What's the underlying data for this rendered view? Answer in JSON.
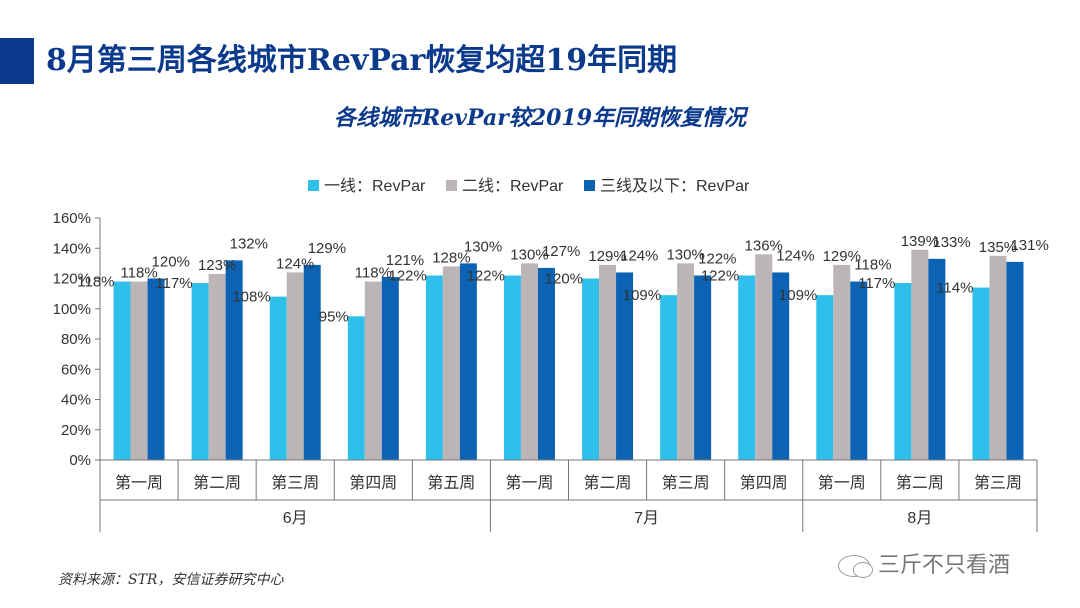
{
  "page_title": "8月第三周各线城市RevPar恢复均超19年同期",
  "source": "资料来源：STR，安信证券研究中心",
  "watermark": "三斤不只看酒",
  "chart_data": {
    "type": "bar",
    "title": "各线城市RevPar较2019年同期恢复情况",
    "categories": [
      "第一周",
      "第二周",
      "第三周",
      "第四周",
      "第五周",
      "第一周",
      "第二周",
      "第三周",
      "第四周",
      "第一周",
      "第二周",
      "第三周"
    ],
    "groups": [
      {
        "label": "6月",
        "count": 5
      },
      {
        "label": "7月",
        "count": 4
      },
      {
        "label": "8月",
        "count": 3
      }
    ],
    "series": [
      {
        "name": "一线：RevPar",
        "color": "#2ec0ea",
        "values": [
          118,
          117,
          108,
          95,
          122,
          122,
          120,
          109,
          122,
          109,
          117,
          114
        ]
      },
      {
        "name": "二线：RevPar",
        "color": "#bcb5b5",
        "values": [
          118,
          123,
          124,
          118,
          128,
          130,
          129,
          130,
          136,
          129,
          139,
          135
        ]
      },
      {
        "name": "三线及以下：RevPar",
        "color": "#0d63b3",
        "values": [
          120,
          132,
          129,
          121,
          130,
          127,
          124,
          122,
          124,
          118,
          133,
          131
        ]
      }
    ],
    "value_suffix": "%",
    "ylim": [
      0,
      160
    ],
    "yticks": [
      "0%",
      "20%",
      "40%",
      "60%",
      "80%",
      "100%",
      "120%",
      "140%",
      "160%"
    ],
    "legend_position": "top-center"
  }
}
